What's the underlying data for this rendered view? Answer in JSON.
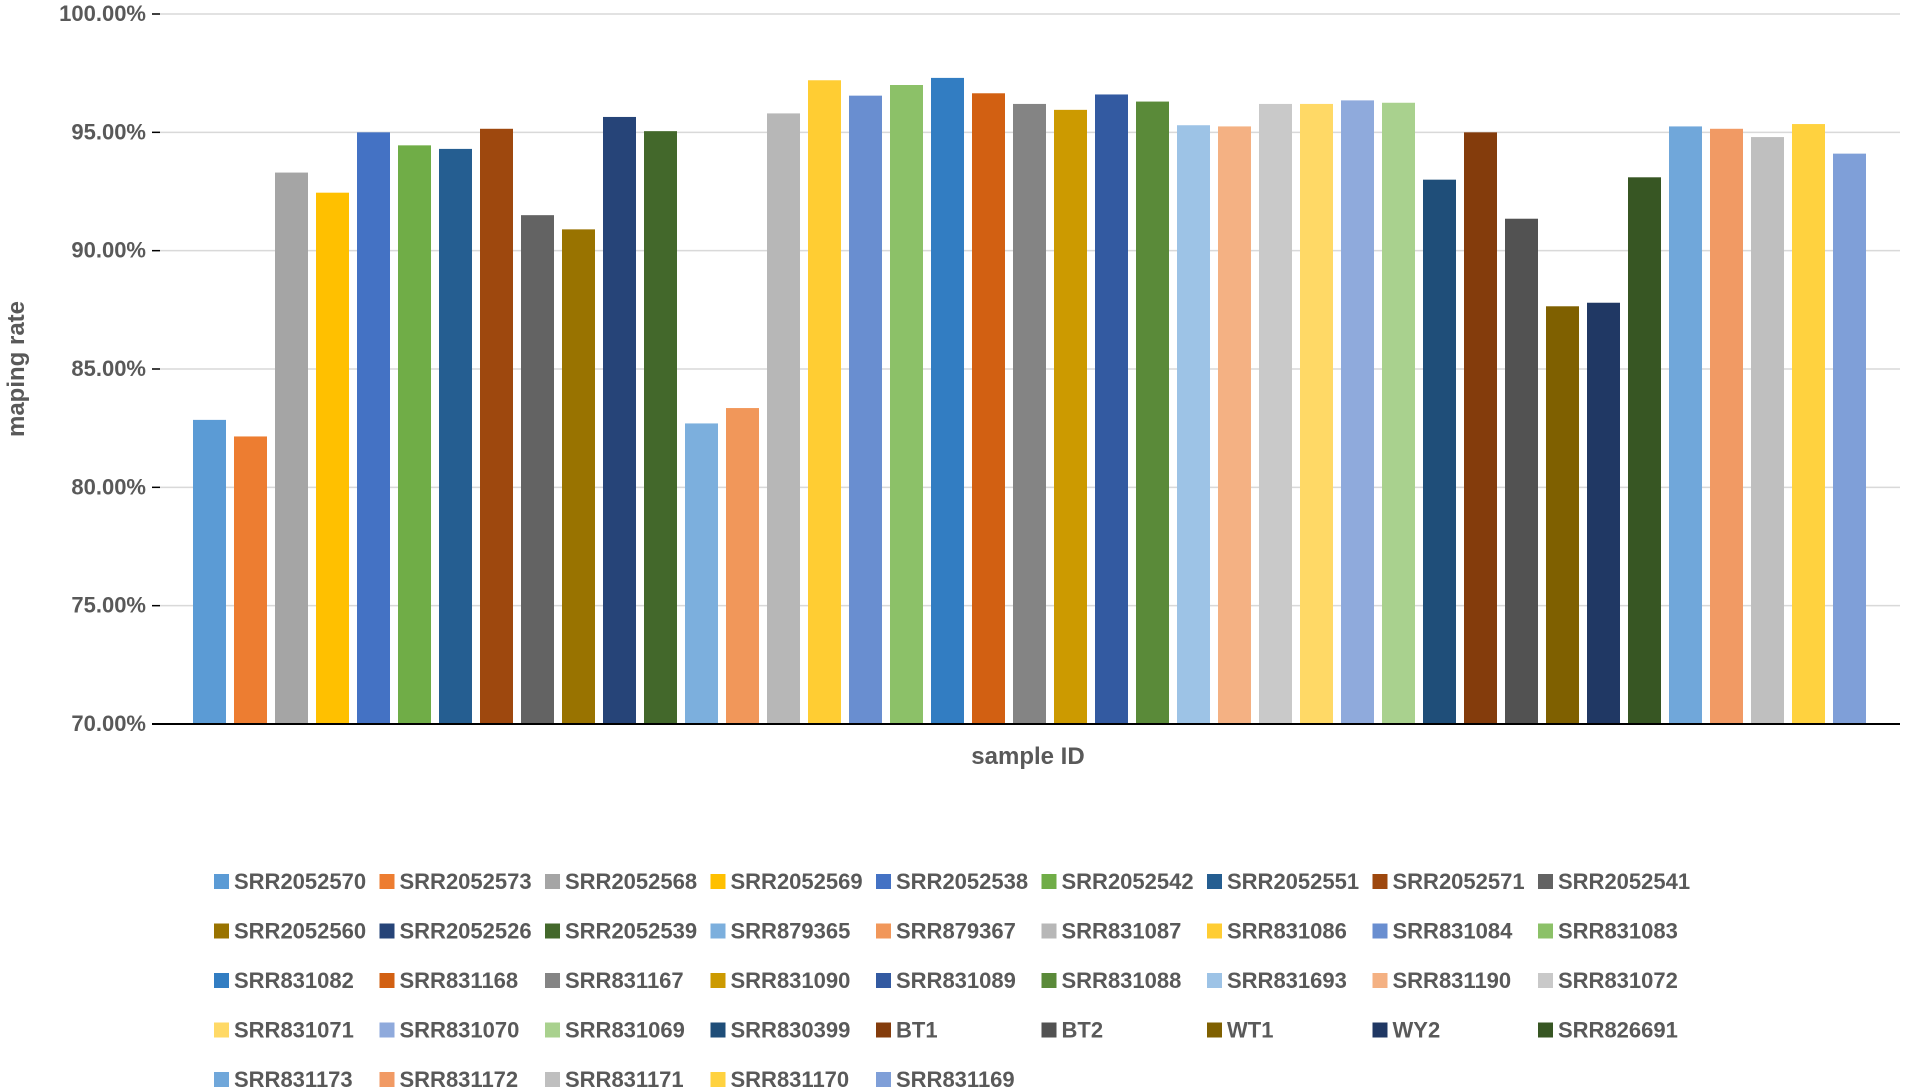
{
  "chart_data": {
    "type": "bar",
    "title": "",
    "xlabel": "sample ID",
    "ylabel": "maping rate",
    "ylim": [
      0.7,
      1.0
    ],
    "yticks": [
      "70.00%",
      "75.00%",
      "80.00%",
      "85.00%",
      "90.00%",
      "95.00%",
      "100.00%"
    ],
    "ytick_values": [
      0.7,
      0.75,
      0.8,
      0.85,
      0.9,
      0.95,
      1.0
    ],
    "grid": true,
    "legend_position": "bottom",
    "categories": [
      "SRR2052570",
      "SRR2052573",
      "SRR2052568",
      "SRR2052569",
      "SRR2052538",
      "SRR2052542",
      "SRR2052551",
      "SRR2052571",
      "SRR2052541",
      "SRR2052560",
      "SRR2052526",
      "SRR2052539",
      "SRR879365",
      "SRR879367",
      "SRR831087",
      "SRR831086",
      "SRR831084",
      "SRR831083",
      "SRR831082",
      "SRR831168",
      "SRR831167",
      "SRR831090",
      "SRR831089",
      "SRR831088",
      "SRR831693",
      "SRR831190",
      "SRR831072",
      "SRR831071",
      "SRR831070",
      "SRR831069",
      "SRR830399",
      "BT1",
      "BT2",
      "WT1",
      "WY2",
      "SRR826691",
      "SRR831173",
      "SRR831172",
      "SRR831171",
      "SRR831170",
      "SRR831169"
    ],
    "values": [
      0.8285,
      0.8215,
      0.933,
      0.9245,
      0.95,
      0.9445,
      0.943,
      0.9515,
      0.915,
      0.909,
      0.9565,
      0.9505,
      0.827,
      0.8335,
      0.958,
      0.972,
      0.9655,
      0.97,
      0.973,
      0.9665,
      0.962,
      0.9595,
      0.966,
      0.963,
      0.953,
      0.9525,
      0.962,
      0.962,
      0.9635,
      0.9625,
      0.93,
      0.95,
      0.9135,
      0.8765,
      0.878,
      0.931,
      0.9525,
      0.9515,
      0.948,
      0.9535,
      0.941
    ],
    "colors": [
      "#5b9bd5",
      "#ed7d31",
      "#a5a5a5",
      "#ffc000",
      "#4472c4",
      "#70ad47",
      "#255e91",
      "#9e480e",
      "#636363",
      "#997300",
      "#264478",
      "#43682b",
      "#7cafdd",
      "#f1975a",
      "#b7b7b7",
      "#ffcd33",
      "#698ed0",
      "#8cc168",
      "#327dc2",
      "#d26012",
      "#848484",
      "#cc9a00",
      "#335aa1",
      "#5a8a39",
      "#9dc3e6",
      "#f4b183",
      "#c9c9c9",
      "#ffd966",
      "#8faadc",
      "#a9d18e",
      "#1f4e79",
      "#843c0c",
      "#525252",
      "#7f6000",
      "#203864",
      "#375623",
      "#70a7da",
      "#f19a64",
      "#bfbfbf",
      "#ffd23f",
      "#7f9fd8"
    ]
  }
}
